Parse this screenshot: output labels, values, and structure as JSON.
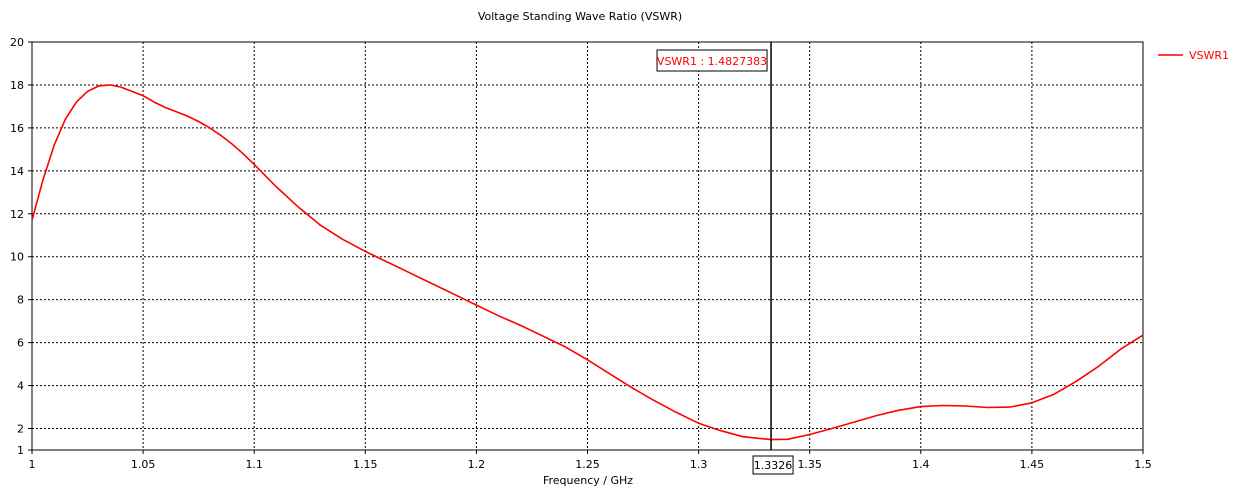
{
  "chart_data": {
    "type": "line",
    "title": "Voltage Standing Wave Ratio (VSWR)",
    "xlabel": "Frequency / GHz",
    "ylabel": "",
    "xlim": [
      1,
      1.5
    ],
    "ylim": [
      1,
      20
    ],
    "x_ticks": [
      1,
      1.05,
      1.1,
      1.15,
      1.2,
      1.25,
      1.3,
      1.35,
      1.4,
      1.45,
      1.5
    ],
    "x_tick_labels": [
      "1",
      "1.05",
      "1.1",
      "1.15",
      "1.2",
      "1.25",
      "1.3",
      "1.35",
      "1.4",
      "1.45",
      "1.5"
    ],
    "y_ticks": [
      1,
      2,
      4,
      6,
      8,
      10,
      12,
      14,
      16,
      18,
      20
    ],
    "y_tick_labels": [
      "1",
      "2",
      "4",
      "6",
      "8",
      "10",
      "12",
      "14",
      "16",
      "18",
      "20"
    ],
    "grid": true,
    "legend_position": "right",
    "series": [
      {
        "name": "VSWR1",
        "color": "#ff0000",
        "x": [
          1.0,
          1.005,
          1.01,
          1.015,
          1.02,
          1.025,
          1.03,
          1.035,
          1.04,
          1.045,
          1.05,
          1.055,
          1.06,
          1.065,
          1.07,
          1.075,
          1.08,
          1.085,
          1.09,
          1.095,
          1.1,
          1.11,
          1.12,
          1.13,
          1.14,
          1.15,
          1.16,
          1.17,
          1.18,
          1.19,
          1.2,
          1.21,
          1.22,
          1.23,
          1.24,
          1.25,
          1.26,
          1.27,
          1.28,
          1.29,
          1.3,
          1.31,
          1.32,
          1.3326,
          1.34,
          1.35,
          1.36,
          1.37,
          1.38,
          1.39,
          1.4,
          1.41,
          1.42,
          1.43,
          1.44,
          1.45,
          1.46,
          1.47,
          1.48,
          1.49,
          1.5
        ],
        "y": [
          11.7,
          13.6,
          15.2,
          16.4,
          17.2,
          17.7,
          17.95,
          18.0,
          17.9,
          17.7,
          17.5,
          17.2,
          16.95,
          16.75,
          16.55,
          16.3,
          16.0,
          15.65,
          15.25,
          14.8,
          14.3,
          13.25,
          12.3,
          11.45,
          10.8,
          10.25,
          9.75,
          9.25,
          8.75,
          8.25,
          7.75,
          7.25,
          6.8,
          6.3,
          5.8,
          5.2,
          4.55,
          3.9,
          3.3,
          2.75,
          2.25,
          1.9,
          1.62,
          1.4827383,
          1.5,
          1.72,
          2.0,
          2.3,
          2.6,
          2.85,
          3.02,
          3.07,
          3.05,
          2.98,
          3.0,
          3.2,
          3.6,
          4.2,
          4.9,
          5.7,
          6.35
        ]
      }
    ],
    "marker": {
      "x": 1.3326,
      "x_label": "1.3326",
      "label": "VSWR1 : 1.4827383"
    }
  }
}
